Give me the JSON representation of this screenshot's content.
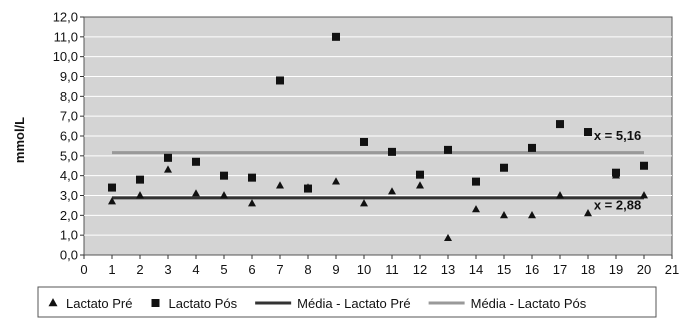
{
  "chart_data": {
    "type": "scatter",
    "ylabel": "mmol/L",
    "xlim": [
      0,
      21
    ],
    "ylim": [
      0,
      12
    ],
    "x_ticks": [
      "0",
      "1",
      "2",
      "3",
      "4",
      "5",
      "6",
      "7",
      "8",
      "9",
      "10",
      "11",
      "12",
      "13",
      "14",
      "15",
      "16",
      "17",
      "18",
      "19",
      "20",
      "21"
    ],
    "y_ticks": [
      "0,0",
      "1,0",
      "2,0",
      "3,0",
      "4,0",
      "5,0",
      "6,0",
      "7,0",
      "8,0",
      "9,0",
      "10,0",
      "11,0",
      "12,0"
    ],
    "grid": true,
    "legend_position": "bottom",
    "series": [
      {
        "name": "Lactato Pré",
        "marker": "triangle",
        "x": [
          1,
          2,
          3,
          4,
          5,
          6,
          7,
          8,
          9,
          10,
          11,
          12,
          13,
          14,
          15,
          16,
          17,
          18,
          19,
          20
        ],
        "y": [
          2.7,
          3.0,
          4.3,
          3.1,
          3.0,
          2.6,
          3.5,
          3.4,
          3.7,
          2.6,
          3.2,
          3.5,
          0.85,
          2.3,
          2.0,
          2.0,
          3.0,
          2.1,
          4.0,
          3.0
        ]
      },
      {
        "name": "Lactato Pós",
        "marker": "square",
        "x": [
          1,
          2,
          3,
          4,
          5,
          6,
          7,
          8,
          9,
          10,
          11,
          12,
          13,
          14,
          15,
          16,
          17,
          18,
          19,
          20
        ],
        "y": [
          3.4,
          3.8,
          4.9,
          4.7,
          4.0,
          3.9,
          8.8,
          3.35,
          11.0,
          5.7,
          5.2,
          4.05,
          5.3,
          3.7,
          4.4,
          5.4,
          6.6,
          6.2,
          4.15,
          4.5
        ]
      },
      {
        "name": "Média - Lactato Pré",
        "type": "line",
        "color": "#333333",
        "x": [
          1,
          20
        ],
        "y": [
          2.88,
          2.88
        ]
      },
      {
        "name": "Média - Lactato Pós",
        "type": "line",
        "color": "#999999",
        "x": [
          1,
          20
        ],
        "y": [
          5.16,
          5.16
        ]
      }
    ],
    "annotations": [
      {
        "text": "x = 5,16",
        "x": 19.9,
        "y": 5.8
      },
      {
        "text": "x = 2,88",
        "x": 19.9,
        "y": 2.3
      }
    ]
  }
}
